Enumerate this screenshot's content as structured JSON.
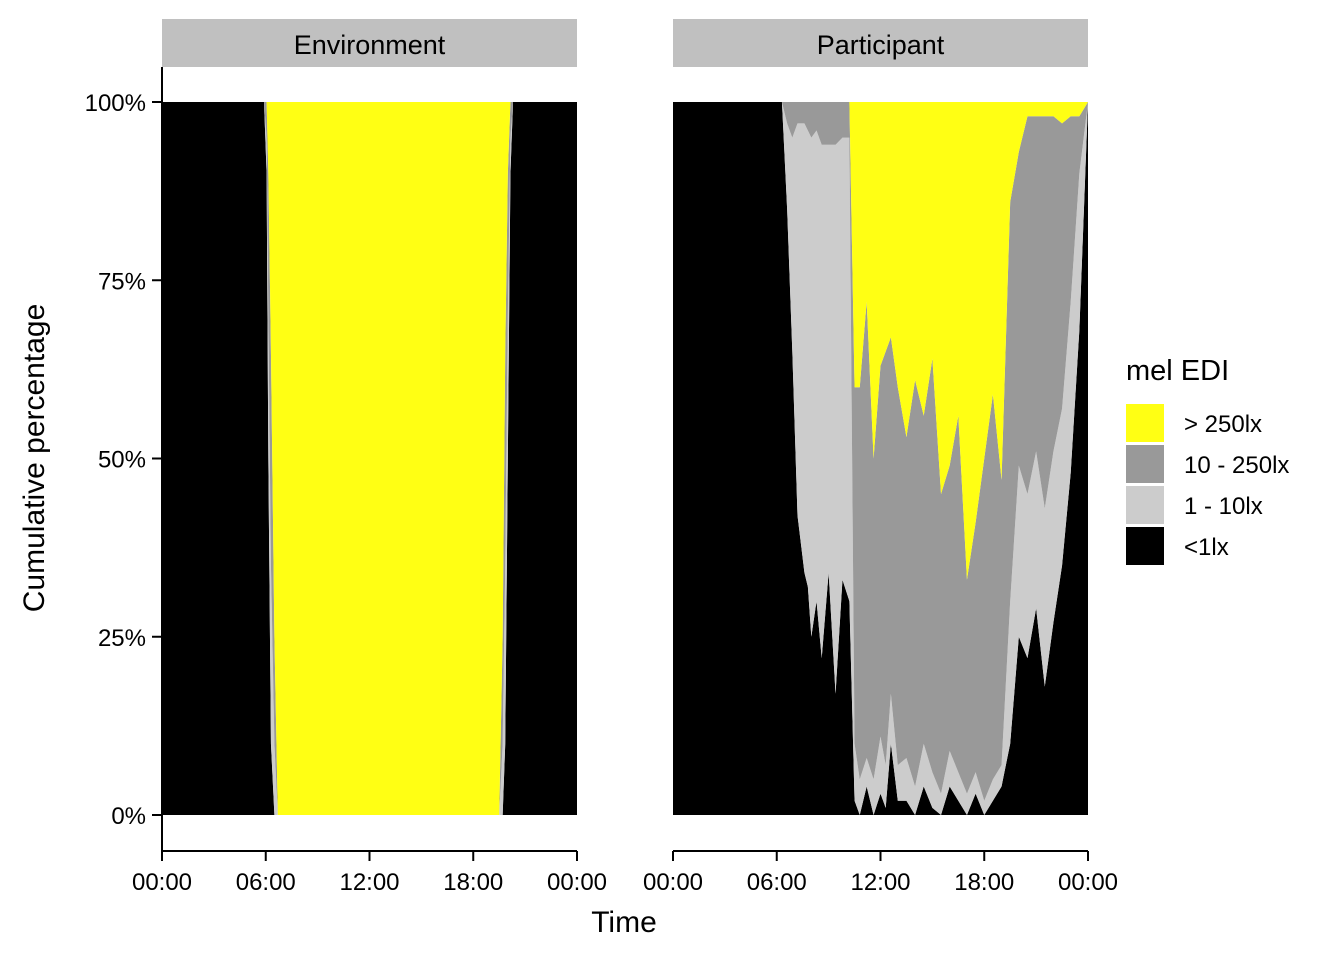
{
  "chart_data": {
    "type": "area",
    "stacked": "percent",
    "xlabel": "Time",
    "ylabel": "Cumulative percentage",
    "x_ticks": [
      "00:00",
      "06:00",
      "12:00",
      "18:00",
      "00:00"
    ],
    "y_ticks": [
      "0%",
      "25%",
      "50%",
      "75%",
      "100%"
    ],
    "xlim": [
      0,
      24
    ],
    "ylim": [
      0,
      100
    ],
    "grid": false,
    "legend": {
      "title": "mel EDI",
      "position": "right",
      "entries": [
        {
          "label": "> 250lx",
          "color": "#FFFF14"
        },
        {
          "label": "10 - 250lx",
          "color": "#999999"
        },
        {
          "label": "1 - 10lx",
          "color": "#CCCCCC"
        },
        {
          "label": "<1lx",
          "color": "#000000"
        }
      ]
    },
    "panels": [
      {
        "name": "Environment",
        "x": [
          0,
          5.9,
          6.05,
          6.15,
          6.3,
          6.5,
          6.7,
          19.5,
          19.7,
          19.85,
          20.0,
          20.15,
          20.3,
          24
        ],
        "series": [
          {
            "name": "<1lx",
            "values": [
              100,
              100,
              90,
              50,
              10,
              0,
              0,
              0,
              0,
              10,
              50,
              90,
              100,
              100
            ]
          },
          {
            "name": "1 - 10lx",
            "values": [
              0,
              0,
              5,
              20,
              25,
              10,
              0,
              0,
              10,
              25,
              20,
              5,
              0,
              0
            ]
          },
          {
            "name": "10 - 250lx",
            "values": [
              0,
              0,
              5,
              20,
              30,
              15,
              0,
              0,
              15,
              30,
              20,
              5,
              0,
              0
            ]
          },
          {
            "name": "> 250lx",
            "values": [
              0,
              0,
              0,
              10,
              35,
              75,
              100,
              100,
              75,
              35,
              10,
              0,
              0,
              0
            ]
          }
        ]
      },
      {
        "name": "Participant",
        "x": [
          0,
          6.3,
          6.6,
          6.9,
          7.2,
          7.6,
          7.8,
          8.0,
          8.3,
          8.6,
          9.0,
          9.4,
          9.8,
          10.2,
          10.5,
          10.8,
          11.2,
          11.6,
          12.0,
          12.3,
          12.6,
          13.0,
          13.5,
          14.0,
          14.5,
          15.0,
          15.5,
          16.0,
          16.5,
          17.0,
          17.5,
          18.0,
          18.5,
          19.0,
          19.5,
          20.0,
          20.5,
          21.0,
          21.5,
          22.0,
          22.5,
          23.0,
          23.5,
          24
        ],
        "series": [
          {
            "name": "<1lx",
            "values": [
              100,
              100,
              85,
              65,
              42,
              34,
              32,
              25,
              30,
              22,
              34,
              17,
              33,
              30,
              2,
              0,
              4,
              0,
              3,
              1,
              10,
              2,
              2,
              0,
              4,
              1,
              0,
              4,
              2,
              0,
              3,
              0,
              2,
              4,
              10,
              25,
              22,
              29,
              18,
              27,
              35,
              48,
              68,
              100
            ]
          },
          {
            "name": "1 - 10lx",
            "values": [
              0,
              0,
              12,
              30,
              55,
              63,
              64,
              70,
              66,
              72,
              60,
              77,
              62,
              65,
              8,
              5,
              4,
              5,
              8,
              6,
              7,
              5,
              6,
              4,
              6,
              5,
              3,
              5,
              4,
              3,
              3,
              2,
              3,
              3,
              20,
              24,
              23,
              22,
              25,
              24,
              22,
              24,
              22,
              0
            ]
          },
          {
            "name": "10 - 250lx",
            "values": [
              0,
              0,
              3,
              5,
              3,
              3,
              4,
              5,
              4,
              6,
              6,
              6,
              5,
              5,
              50,
              55,
              64,
              45,
              52,
              58,
              50,
              53,
              45,
              57,
              46,
              58,
              42,
              40,
              50,
              30,
              35,
              48,
              54,
              40,
              56,
              44,
              53,
              47,
              55,
              47,
              40,
              26,
              8,
              0
            ]
          },
          {
            "name": "> 250lx",
            "values": [
              0,
              0,
              0,
              0,
              0,
              0,
              0,
              0,
              0,
              0,
              0,
              0,
              0,
              0,
              40,
              40,
              28,
              50,
              37,
              35,
              33,
              40,
              47,
              39,
              44,
              36,
              55,
              51,
              44,
              67,
              59,
              50,
              41,
              53,
              14,
              7,
              2,
              2,
              2,
              2,
              3,
              2,
              2,
              0
            ]
          }
        ]
      }
    ]
  }
}
